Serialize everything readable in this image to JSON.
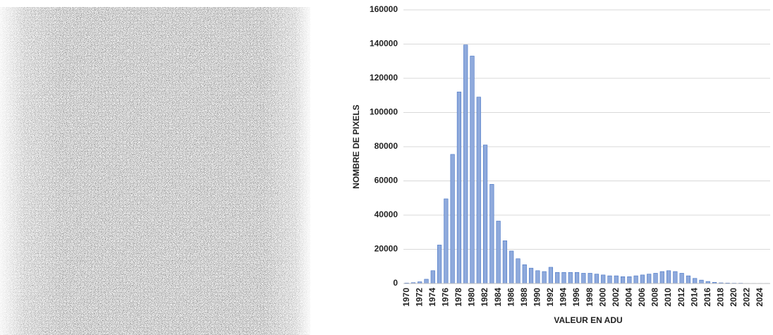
{
  "chart_data": {
    "type": "bar",
    "xlabel": "VALEUR EN ADU",
    "ylabel": "NOMBRE DE PIXELS",
    "categories": [
      "1970",
      null,
      "1972",
      null,
      "1974",
      null,
      "1976",
      null,
      "1978",
      null,
      "1980",
      null,
      "1982",
      null,
      "1984",
      null,
      "1986",
      null,
      "1988",
      null,
      "1990",
      null,
      "1992",
      null,
      "1994",
      null,
      "1996",
      null,
      "1998",
      null,
      "2000",
      null,
      "2002",
      null,
      "2004",
      null,
      "2006",
      null,
      "2008",
      null,
      "2010",
      null,
      "2012",
      null,
      "2014",
      null,
      "2016",
      null,
      "2018",
      null,
      "2020",
      null,
      "2022",
      null,
      "2024",
      null
    ],
    "values": [
      300,
      500,
      1000,
      2500,
      7500,
      22500,
      49500,
      75500,
      112000,
      139500,
      133000,
      109000,
      81000,
      58000,
      36500,
      25000,
      19000,
      14500,
      11000,
      9000,
      7500,
      7000,
      9500,
      6500,
      6500,
      6500,
      6500,
      6000,
      6000,
      5500,
      5000,
      4500,
      4500,
      4000,
      4000,
      4500,
      5000,
      5500,
      6000,
      7000,
      7500,
      7000,
      6000,
      4500,
      3000,
      2000,
      1200,
      700,
      400,
      300,
      200,
      200,
      100,
      100,
      100,
      100
    ],
    "color": "#8faadc",
    "ylim": [
      0,
      160000
    ],
    "yticks": [
      0,
      20000,
      40000,
      60000,
      80000,
      100000,
      120000,
      140000,
      160000
    ],
    "grid": true
  }
}
